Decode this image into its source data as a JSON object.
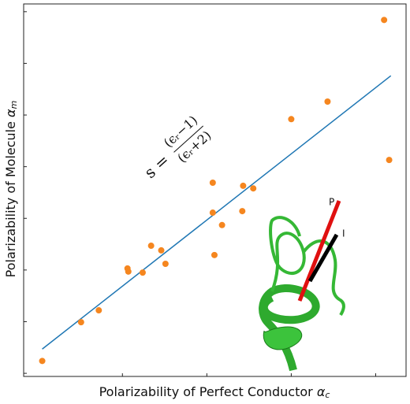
{
  "chart_data": {
    "type": "scatter",
    "x_label": {
      "text": "Polarizability of Perfect Conductor",
      "symbol": "α",
      "subscript": "c"
    },
    "y_label": {
      "text": "Polarizability of Molecule",
      "symbol": "α",
      "subscript": "m"
    },
    "x": [
      0.05,
      0.51,
      0.72,
      1.06,
      1.07,
      1.24,
      1.34,
      1.46,
      1.51,
      2.07,
      2.07,
      2.09,
      2.18,
      2.42,
      2.43,
      2.55,
      3.0,
      3.43,
      4.1,
      4.16
    ],
    "values": [
      0.24,
      0.99,
      1.22,
      2.03,
      1.97,
      1.95,
      2.47,
      2.38,
      2.12,
      3.11,
      3.69,
      2.29,
      2.87,
      3.14,
      3.63,
      3.58,
      4.92,
      5.26,
      6.84,
      4.13
    ],
    "color": "#f5861f",
    "fit_line": {
      "x": [
        0.05,
        4.18
      ],
      "y": [
        0.47,
        5.76
      ],
      "color": "#1f77b4"
    },
    "annotation": {
      "lhs": "s =",
      "numerator": "(ϵᵣ−1)",
      "denominator": "(ϵᵣ+2)"
    },
    "inset_labels": [
      "P",
      "I"
    ],
    "xlim": [
      -0.17,
      4.36
    ],
    "ylim": [
      -0.06,
      7.15
    ],
    "xticks": [
      1,
      2,
      3,
      4
    ],
    "yticks": [
      0,
      1,
      2,
      3,
      4,
      5,
      6,
      7
    ]
  }
}
